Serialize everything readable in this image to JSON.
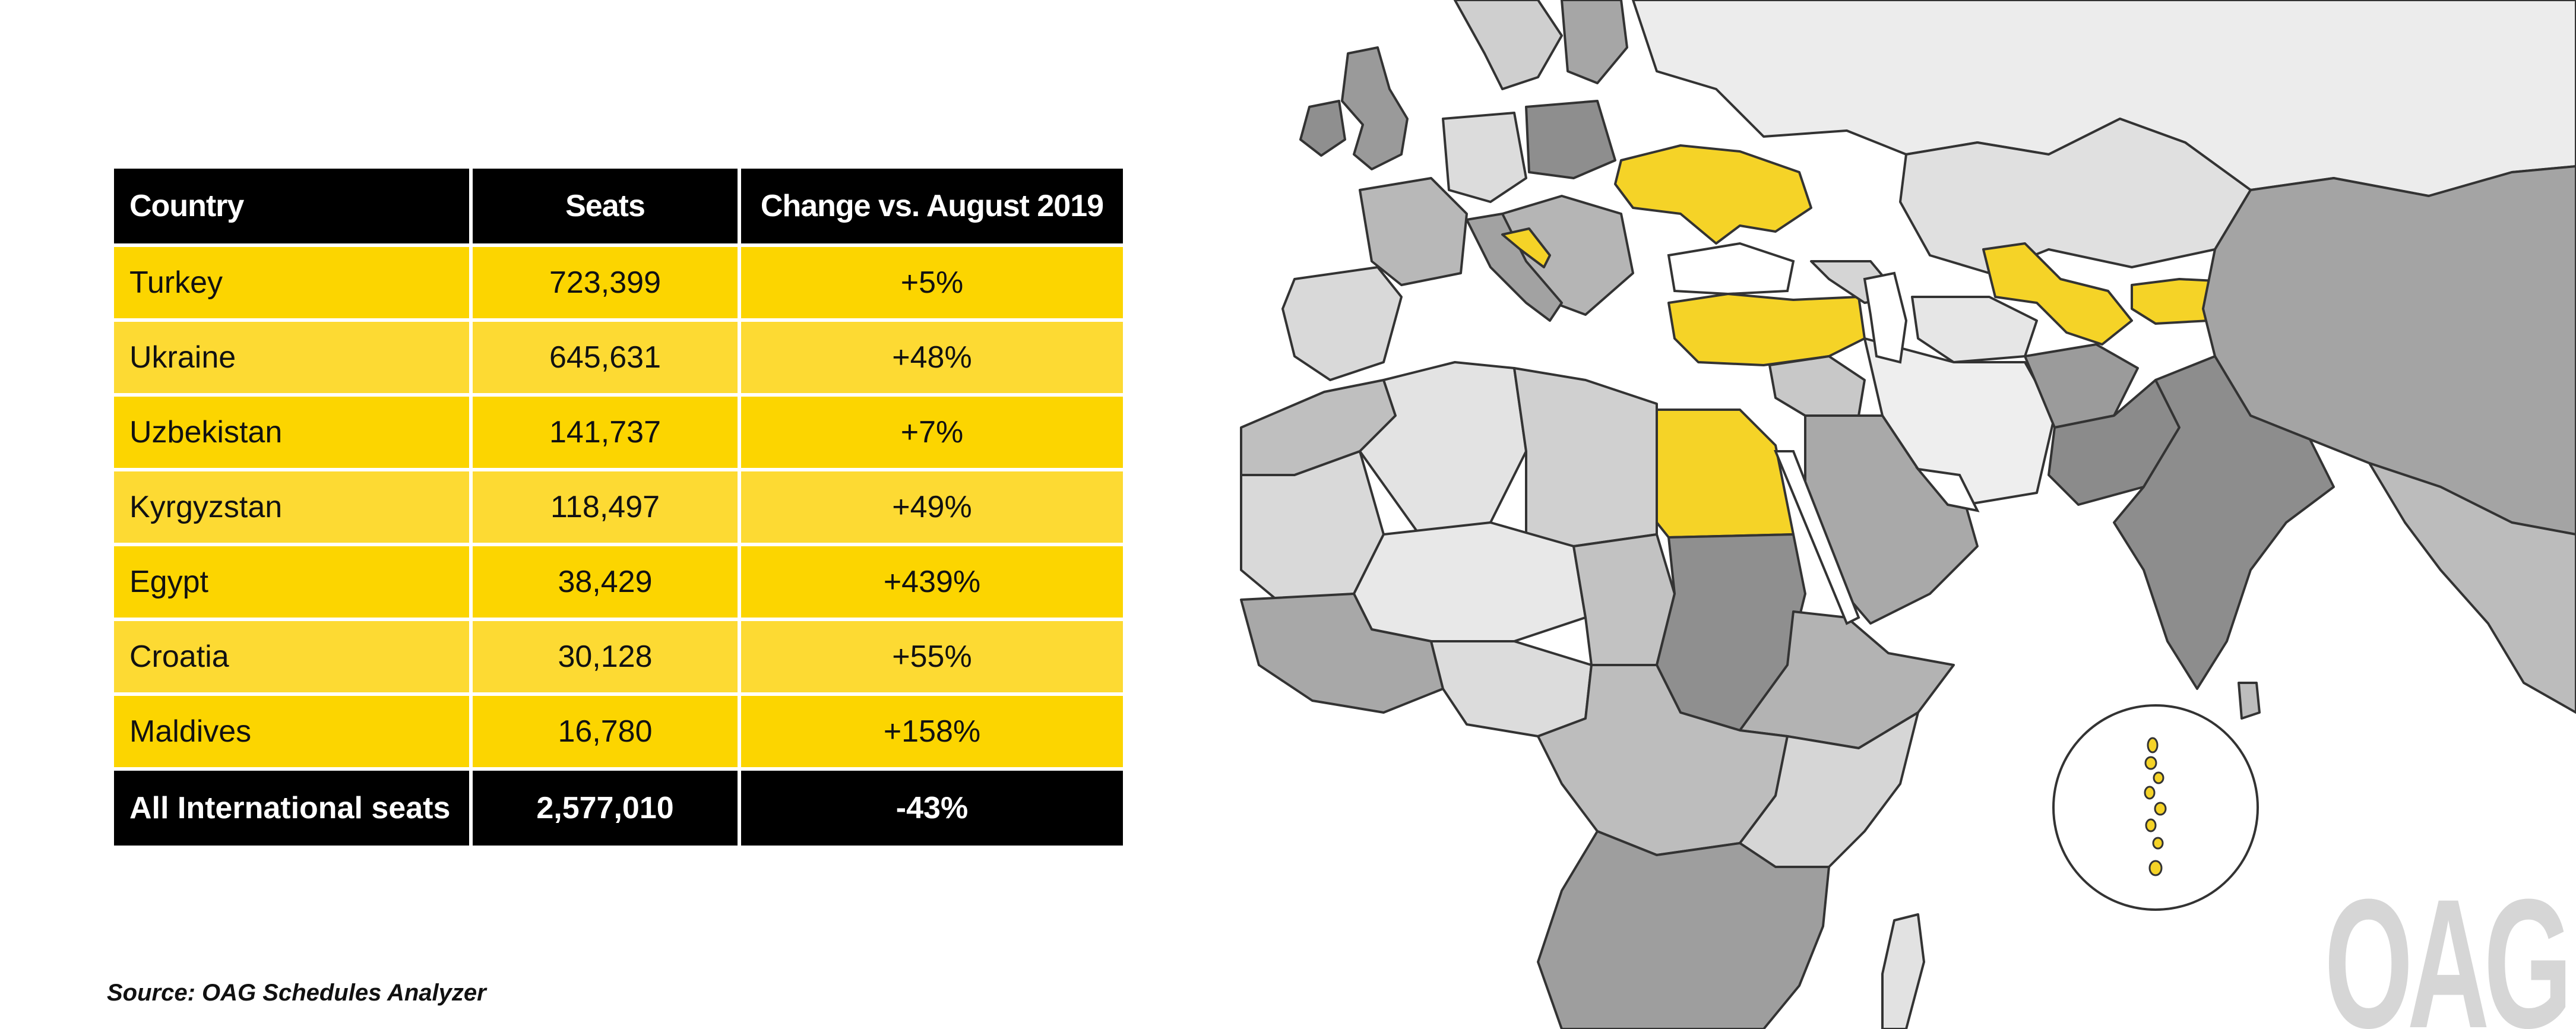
{
  "table": {
    "headers": [
      "Country",
      "Seats",
      "Change vs. August 2019"
    ],
    "rows": [
      {
        "country": "Turkey",
        "seats": "723,399",
        "change": "+5%"
      },
      {
        "country": "Ukraine",
        "seats": "645,631",
        "change": "+48%"
      },
      {
        "country": "Uzbekistan",
        "seats": "141,737",
        "change": "+7%"
      },
      {
        "country": "Kyrgyzstan",
        "seats": "118,497",
        "change": "+49%"
      },
      {
        "country": "Egypt",
        "seats": "38,429",
        "change": "+439%"
      },
      {
        "country": "Croatia",
        "seats": "30,128",
        "change": "+55%"
      },
      {
        "country": "Maldives",
        "seats": "16,780",
        "change": "+158%"
      }
    ],
    "total": {
      "country": "All International seats",
      "seats": "2,577,010",
      "change": "-43%"
    }
  },
  "source": "Source: OAG Schedules Analyzer",
  "logo": "OAG",
  "colors": {
    "highlight": "#F5D327",
    "table_yellow": "#FCD500",
    "table_yellow_alt": "#FDDA33",
    "header_black": "#000000",
    "land_light": "#e6e6e6",
    "land_mid": "#bdbdbd",
    "land_dark": "#8f8f8f",
    "logo_gray": "#d6d6d6"
  },
  "map": {
    "highlighted_countries": [
      "Ukraine",
      "Croatia",
      "Turkey",
      "Egypt",
      "Uzbekistan",
      "Kyrgyzstan",
      "Maldives"
    ]
  }
}
